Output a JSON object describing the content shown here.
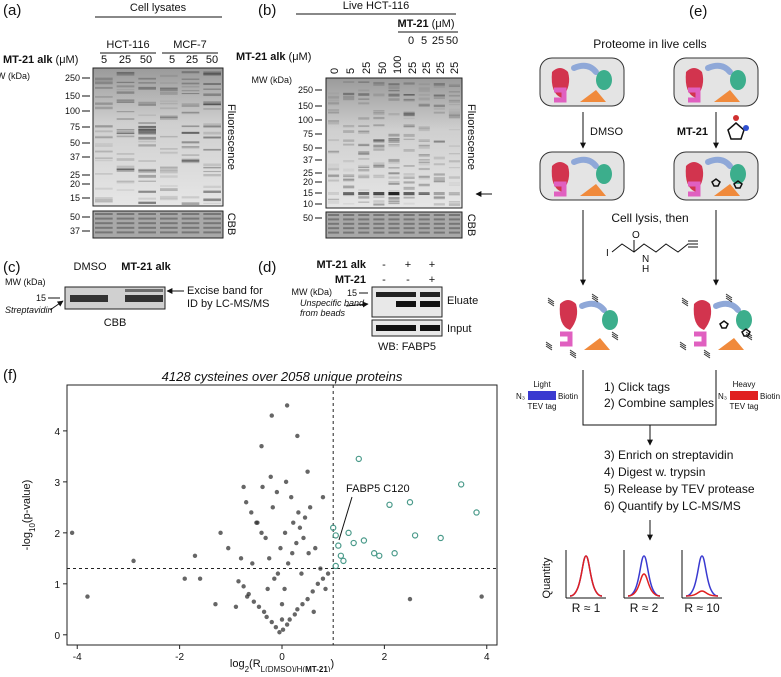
{
  "panel_a": {
    "label": "(a)",
    "group": "Cell lysates",
    "cell_lines": [
      "HCT-116",
      "MCF-7"
    ],
    "compound": "MT-21 alk",
    "unit": "(μM)",
    "lanes": [
      "5",
      "25",
      "50",
      "5",
      "25",
      "50"
    ],
    "mw_header": "MW (kDa)",
    "mw": [
      "250",
      "150",
      "100",
      "75",
      "50",
      "37",
      "25",
      "20",
      "15"
    ],
    "cbb_mw": [
      "50",
      "37"
    ],
    "readouts": [
      "Fluorescence",
      "CBB"
    ]
  },
  "panel_b": {
    "label": "(b)",
    "group": "Live HCT-116",
    "competitor": "MT-21",
    "competitor_unit": "(μM)",
    "competitor_lanes": [
      "0",
      "5",
      "25",
      "50"
    ],
    "compound": "MT-21 alk",
    "unit": "(μM)",
    "lanes": [
      "0",
      "5",
      "25",
      "50",
      "100",
      "25",
      "25",
      "25",
      "25"
    ],
    "mw_header": "MW (kDa)",
    "mw": [
      "250",
      "150",
      "100",
      "75",
      "50",
      "37",
      "25",
      "20",
      "15",
      "10"
    ],
    "cbb_mw": [
      "50"
    ],
    "readouts": [
      "Fluorescence",
      "CBB"
    ]
  },
  "panel_c": {
    "label": "(c)",
    "mw_header": "MW (kDa)",
    "mw": [
      "15"
    ],
    "band": "Streptavidin",
    "lanes": [
      "DMSO",
      "MT-21 alk"
    ],
    "note": [
      "Excise band for",
      "ID by LC-MS/MS"
    ],
    "readout": "CBB"
  },
  "panel_d": {
    "label": "(d)",
    "rows": [
      {
        "name": "MT-21 alk",
        "signs": [
          "-",
          "+",
          "+"
        ]
      },
      {
        "name": "MT-21",
        "signs": [
          "-",
          "-",
          "+"
        ]
      }
    ],
    "mw_header": "MW (kDa)",
    "mw": [
      "15"
    ],
    "note": [
      "Unspecific band",
      "from beads"
    ],
    "blots": [
      "Eluate",
      "Input"
    ],
    "antibody": "WB: FABP5"
  },
  "panel_e": {
    "label": "(e)",
    "title": "Proteome in live cells",
    "treatments": [
      "DMSO",
      "MT-21"
    ],
    "lysis": "Cell lysis, then",
    "probe_atoms": [
      "I",
      "O",
      "N",
      "H"
    ],
    "tags": [
      {
        "isotope": "Light",
        "linker": "N₃",
        "tag": "TEV tag",
        "handle": "Biotin",
        "color": "#3a3ad0"
      },
      {
        "isotope": "Heavy",
        "linker": "N₃",
        "tag": "TEV tag",
        "handle": "Biotin",
        "color": "#e02020"
      }
    ],
    "steps_a": [
      "1) Click tags",
      "2) Combine samples"
    ],
    "steps_b": [
      "3) Enrich on streptavidin",
      "4) Digest w. trypsin",
      "5) Release by TEV protease",
      "6) Quantify by LC-MS/MS"
    ],
    "quantity": "Quantity",
    "ratios": [
      "R ≈ 1",
      "R ≈ 2",
      "R ≈ 10"
    ]
  },
  "panel_f": {
    "label": "(f)",
    "title": "4128 cysteines over 2058 unique proteins",
    "xlabel": [
      {
        "text": "log"
      },
      {
        "text": "2",
        "style": "sub"
      },
      {
        "text": "(R"
      },
      {
        "text": "L(DMSO)/H(",
        "style": "sub"
      },
      {
        "text": "MT-21",
        "style": "sub-bold"
      },
      {
        "text": ")",
        "style": "sub"
      },
      {
        "text": ")"
      }
    ],
    "ylabel": [
      {
        "text": "-log"
      },
      {
        "text": "10",
        "style": "sub"
      },
      {
        "text": "(p-value)"
      }
    ],
    "annotation": "FABP5 C120",
    "xlim": [
      -4.2,
      4.2
    ],
    "ylim": [
      -0.2,
      4.9
    ],
    "xticks": [
      -4,
      -2,
      0,
      2,
      4
    ],
    "yticks": [
      0,
      1,
      2,
      3,
      4
    ],
    "cutoffs": {
      "x": 1,
      "y": 1.3
    },
    "points": {
      "color": "#333333",
      "x": [
        -0.05,
        0.02,
        0.1,
        -0.12,
        0.15,
        -0.2,
        0.25,
        -0.3,
        0.3,
        -0.35,
        0.4,
        -0.45,
        0.5,
        -0.55,
        0.6,
        -0.65,
        0.7,
        -0.75,
        0.8,
        -0.85,
        0.0,
        0.05,
        -0.08,
        0.12,
        -0.15,
        0.2,
        -0.25,
        0.28,
        -0.32,
        0.35,
        -0.4,
        0.45,
        -0.5,
        0.55,
        -0.6,
        0.65,
        -0.7,
        0.75,
        -0.8,
        0.9,
        -0.1,
        0.08,
        0.18,
        -0.22,
        0.32,
        -0.38,
        0.42,
        -0.48,
        0.52,
        -0.58,
        0.0,
        -0.03,
        0.06,
        -0.18,
        0.22,
        -0.28,
        0.38,
        0.62,
        -0.68,
        0.85,
        -4.1,
        -3.8,
        -2.9,
        -1.9,
        -1.7,
        -1.6,
        -1.3,
        -1.2,
        -1.05,
        -0.9,
        2.5,
        3.9,
        -0.75,
        -0.4,
        -0.2,
        0.1,
        0.3,
        0.5,
        0.8
      ],
      "y": [
        0.05,
        0.1,
        0.2,
        0.15,
        0.3,
        0.25,
        0.4,
        0.35,
        0.5,
        0.45,
        0.6,
        0.55,
        0.7,
        0.65,
        0.85,
        0.8,
        1.0,
        0.95,
        1.1,
        1.05,
        0.6,
        0.9,
        1.2,
        1.4,
        1.1,
        1.6,
        1.5,
        1.8,
        1.9,
        2.1,
        2.0,
        2.3,
        2.2,
        2.5,
        2.4,
        1.7,
        2.6,
        1.3,
        1.5,
        1.2,
        2.8,
        3.0,
        2.7,
        3.1,
        2.4,
        2.9,
        1.9,
        2.2,
        1.6,
        1.4,
        0.3,
        1.7,
        2.0,
        2.5,
        2.2,
        0.9,
        1.2,
        0.45,
        0.75,
        0.9,
        2.0,
        0.75,
        1.45,
        1.1,
        1.55,
        1.1,
        0.6,
        2.0,
        1.7,
        0.55,
        0.7,
        0.75,
        2.9,
        3.7,
        4.3,
        4.5,
        3.9,
        3.2,
        2.7
      ]
    },
    "hits": {
      "color": "#4a9a8a",
      "x": [
        1.05,
        1.1,
        1.15,
        1.2,
        1.05,
        1.3,
        1.4,
        1.5,
        1.6,
        1.8,
        1.9,
        2.2,
        2.1,
        2.5,
        2.6,
        3.1,
        3.5,
        3.8,
        1.0
      ],
      "y": [
        1.95,
        1.75,
        1.55,
        1.45,
        1.35,
        2.0,
        1.8,
        3.45,
        1.85,
        1.6,
        1.55,
        1.6,
        2.55,
        2.6,
        1.95,
        1.9,
        2.95,
        2.4,
        2.1
      ]
    }
  }
}
